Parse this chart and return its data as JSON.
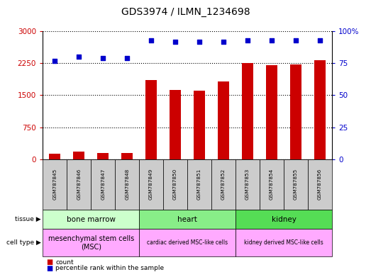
{
  "title": "GDS3974 / ILMN_1234698",
  "samples": [
    "GSM787845",
    "GSM787846",
    "GSM787847",
    "GSM787848",
    "GSM787849",
    "GSM787850",
    "GSM787851",
    "GSM787852",
    "GSM787853",
    "GSM787854",
    "GSM787855",
    "GSM787856"
  ],
  "counts": [
    130,
    170,
    140,
    140,
    1860,
    1620,
    1610,
    1820,
    2260,
    2210,
    2220,
    2320
  ],
  "percentile_ranks": [
    77,
    80,
    79,
    79,
    93,
    92,
    92,
    92,
    93,
    93,
    93,
    93
  ],
  "count_ylim": [
    0,
    3000
  ],
  "count_yticks": [
    0,
    750,
    1500,
    2250,
    3000
  ],
  "pct_ylim": [
    0,
    100
  ],
  "pct_yticks": [
    0,
    25,
    50,
    75,
    100
  ],
  "pct_yticklabels": [
    "0",
    "25",
    "50",
    "75",
    "100%"
  ],
  "bar_color": "#cc0000",
  "dot_color": "#0000cc",
  "tissue_groups": [
    {
      "label": "bone marrow",
      "start": 0,
      "end": 4,
      "color": "#ccffcc"
    },
    {
      "label": "heart",
      "start": 4,
      "end": 8,
      "color": "#88ee88"
    },
    {
      "label": "kidney",
      "start": 8,
      "end": 12,
      "color": "#55dd55"
    }
  ],
  "celltype_groups": [
    {
      "label": "mesenchymal stem cells\n(MSC)",
      "start": 0,
      "end": 4,
      "color": "#ffaaff"
    },
    {
      "label": "cardiac derived MSC-like cells",
      "start": 4,
      "end": 8,
      "color": "#ffaaff"
    },
    {
      "label": "kidney derived MSC-like cells",
      "start": 8,
      "end": 12,
      "color": "#ffaaff"
    }
  ],
  "tissue_label": "tissue",
  "celltype_label": "cell type",
  "legend_count": "count",
  "legend_pct": "percentile rank within the sample",
  "dotted_line_color": "#000000",
  "sample_bg": "#cccccc"
}
